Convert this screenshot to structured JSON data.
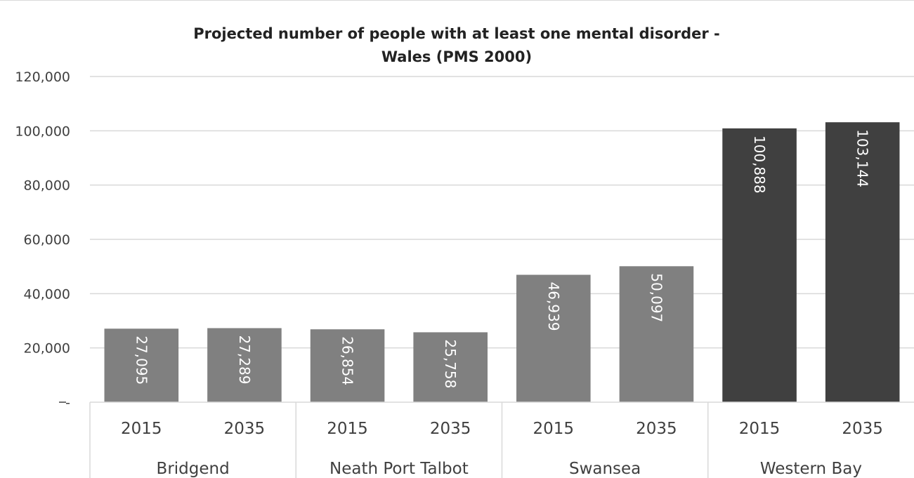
{
  "chart_data": {
    "type": "bar",
    "title": "Projected number of people with at least one mental disorder -",
    "subtitle": "Wales (PMS 2000)",
    "xlabel": "",
    "ylabel": "",
    "ylim": [
      0,
      120000
    ],
    "yticks": [
      {
        "value": 0,
        "label": "-"
      },
      {
        "value": 20000,
        "label": "20,000"
      },
      {
        "value": 40000,
        "label": "40,000"
      },
      {
        "value": 60000,
        "label": "60,000"
      },
      {
        "value": 80000,
        "label": "80,000"
      },
      {
        "value": 100000,
        "label": "100,000"
      },
      {
        "value": 120000,
        "label": "120,000"
      }
    ],
    "grid": true,
    "groups": [
      {
        "name": "Bridgend",
        "categories": [
          "2015",
          "2035"
        ],
        "values": [
          27095,
          27289
        ],
        "labels": [
          "27,095",
          "27,289"
        ],
        "color": "#808080"
      },
      {
        "name": "Neath Port Talbot",
        "categories": [
          "2015",
          "2035"
        ],
        "values": [
          26854,
          25758
        ],
        "labels": [
          "26,854",
          "25,758"
        ],
        "color": "#808080"
      },
      {
        "name": "Swansea",
        "categories": [
          "2015",
          "2035"
        ],
        "values": [
          46939,
          50097
        ],
        "labels": [
          "46,939",
          "50,097"
        ],
        "color": "#808080"
      },
      {
        "name": "Western Bay",
        "categories": [
          "2015",
          "2035"
        ],
        "values": [
          100888,
          103144
        ],
        "labels": [
          "100,888",
          "103,144"
        ],
        "color": "#404040"
      }
    ]
  }
}
